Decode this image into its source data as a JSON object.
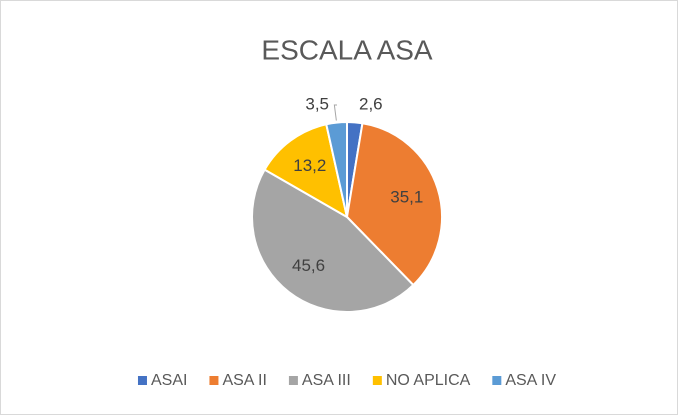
{
  "chart_data": {
    "type": "pie",
    "title": "ESCALA ASA",
    "categories": [
      "ASAI",
      "ASA II",
      "ASA III",
      "NO APLICA",
      "ASA IV"
    ],
    "values": [
      2.6,
      35.1,
      45.6,
      13.2,
      3.5
    ],
    "value_labels": [
      "2,6",
      "35,1",
      "45,6",
      "13,2",
      "3,5"
    ],
    "colors": [
      "#4472c4",
      "#ed7d31",
      "#a5a5a5",
      "#ffc000",
      "#5b9bd5"
    ],
    "legend": "bottom"
  }
}
